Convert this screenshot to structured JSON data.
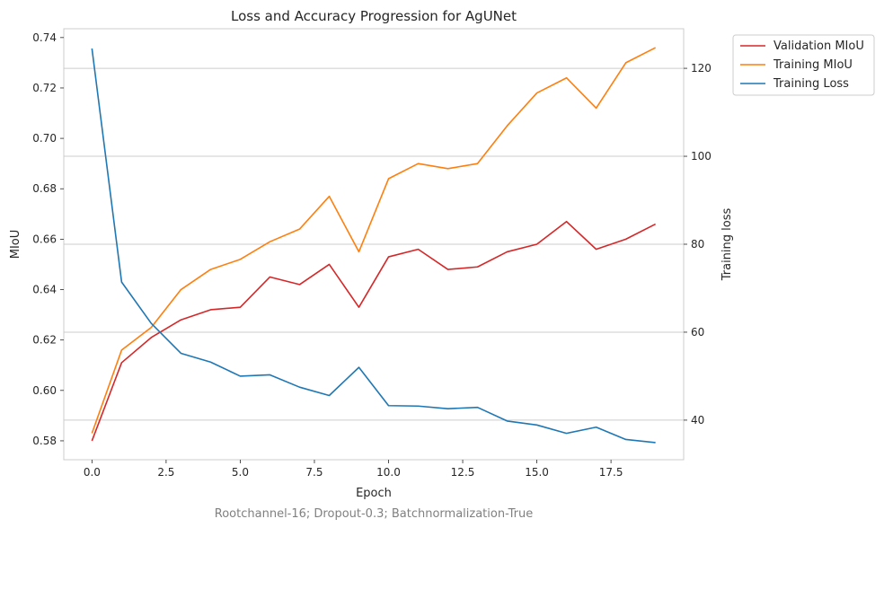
{
  "chart_data": {
    "type": "line",
    "title": "Loss and Accuracy Progression for AgUNet",
    "xlabel": "Epoch",
    "ylabel": "MIoU",
    "y2label": "Training loss",
    "caption": "Rootchannel-16; Dropout-0.3; Batchnormalization-True",
    "xlim": [
      -0.95,
      19.95
    ],
    "ylim": [
      0.5725,
      0.7435
    ],
    "y2lim": [
      31,
      129
    ],
    "xticks": [
      0.0,
      2.5,
      5.0,
      7.5,
      10.0,
      12.5,
      15.0,
      17.5
    ],
    "xtick_labels": [
      "0.0",
      "2.5",
      "5.0",
      "7.5",
      "10.0",
      "12.5",
      "15.0",
      "17.5"
    ],
    "yticks": [
      0.58,
      0.6,
      0.62,
      0.64,
      0.66,
      0.68,
      0.7,
      0.72,
      0.74
    ],
    "ytick_labels": [
      "0.58",
      "0.60",
      "0.62",
      "0.64",
      "0.66",
      "0.68",
      "0.70",
      "0.72",
      "0.74"
    ],
    "y2ticks": [
      40,
      60,
      80,
      100,
      120
    ],
    "y2tick_labels": [
      "40",
      "60",
      "80",
      "100",
      "120"
    ],
    "grid": true,
    "legend_position": "outside top-right",
    "x": [
      0,
      1,
      2,
      3,
      4,
      5,
      6,
      7,
      8,
      9,
      10,
      11,
      12,
      13,
      14,
      15,
      16,
      17,
      18,
      19
    ],
    "series": [
      {
        "name": "Validation MIoU",
        "axis": "left",
        "color": "#d62728",
        "values": [
          0.58,
          0.611,
          0.621,
          0.628,
          0.632,
          0.633,
          0.645,
          0.642,
          0.65,
          0.633,
          0.653,
          0.656,
          0.648,
          0.649,
          0.655,
          0.658,
          0.667,
          0.656,
          0.66,
          0.666
        ]
      },
      {
        "name": "Training MIoU",
        "axis": "left",
        "color": "#ff7f0e",
        "values": [
          0.583,
          0.616,
          0.625,
          0.64,
          0.648,
          0.652,
          0.659,
          0.664,
          0.677,
          0.655,
          0.684,
          0.69,
          0.688,
          0.69,
          0.705,
          0.718,
          0.724,
          0.712,
          0.73,
          0.736
        ]
      },
      {
        "name": "Training Loss",
        "axis": "right",
        "color": "#1f77b4",
        "values": [
          124.5,
          71.4,
          62.0,
          55.2,
          53.2,
          50.0,
          50.3,
          47.5,
          45.6,
          52.0,
          43.3,
          43.2,
          42.6,
          42.9,
          39.8,
          38.9,
          37.0,
          38.4,
          35.6,
          34.9
        ]
      }
    ]
  }
}
